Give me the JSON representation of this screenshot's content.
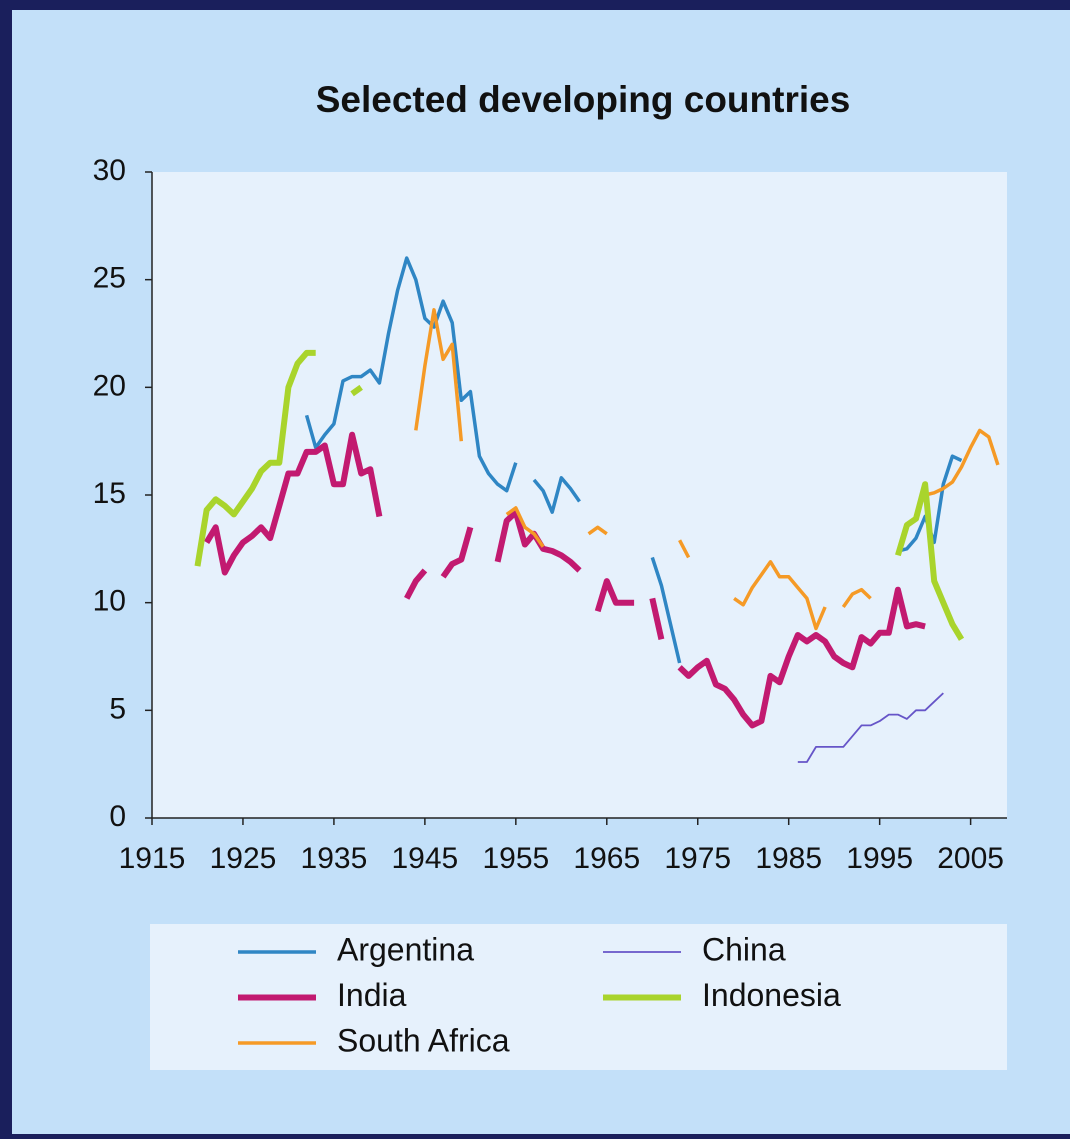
{
  "chart_data": {
    "type": "line",
    "title": "Selected developing countries",
    "x": [
      1920,
      1921,
      1922,
      1923,
      1924,
      1925,
      1926,
      1927,
      1928,
      1929,
      1930,
      1931,
      1932,
      1933,
      1934,
      1935,
      1936,
      1937,
      1938,
      1939,
      1940,
      1941,
      1942,
      1943,
      1944,
      1945,
      1946,
      1947,
      1948,
      1949,
      1950,
      1951,
      1952,
      1953,
      1954,
      1955,
      1956,
      1957,
      1958,
      1959,
      1960,
      1961,
      1962,
      1963,
      1964,
      1965,
      1966,
      1967,
      1968,
      1969,
      1970,
      1971,
      1972,
      1973,
      1974,
      1975,
      1976,
      1977,
      1978,
      1979,
      1980,
      1981,
      1982,
      1983,
      1984,
      1985,
      1986,
      1987,
      1988,
      1989,
      1990,
      1991,
      1992,
      1993,
      1994,
      1995,
      1996,
      1997,
      1998,
      1999,
      2000,
      2001,
      2002,
      2003,
      2004,
      2005,
      2006,
      2007,
      2008
    ],
    "series": [
      {
        "name": "Argentina",
        "color": "#2f86c4",
        "values": [
          null,
          null,
          null,
          null,
          null,
          null,
          null,
          null,
          null,
          null,
          null,
          null,
          18.7,
          17.2,
          17.8,
          18.3,
          20.3,
          20.5,
          20.5,
          20.8,
          20.2,
          22.5,
          24.5,
          26,
          25,
          23.2,
          22.8,
          24,
          23,
          19.4,
          19.8,
          16.8,
          16,
          15.5,
          15.2,
          16.5,
          null,
          15.7,
          15.2,
          14.2,
          15.8,
          15.3,
          14.7,
          null,
          null,
          null,
          null,
          null,
          null,
          null,
          12.1,
          10.8,
          9,
          7.2,
          null,
          null,
          null,
          null,
          null,
          null,
          null,
          null,
          null,
          null,
          null,
          null,
          null,
          null,
          null,
          null,
          null,
          null,
          null,
          null,
          null,
          null,
          null,
          12.4,
          12.5,
          13,
          14,
          12.8,
          15.5,
          16.8,
          16.6,
          null,
          null,
          null,
          null
        ]
      },
      {
        "name": "India",
        "color": "#c21a70",
        "values": [
          null,
          12.8,
          13.5,
          11.4,
          12.2,
          12.8,
          13.1,
          13.5,
          13,
          14.5,
          16,
          16,
          17,
          17,
          17.3,
          15.5,
          15.5,
          17.8,
          16,
          16.2,
          14,
          null,
          null,
          10.2,
          11,
          11.5,
          null,
          11.2,
          11.8,
          12,
          13.5,
          null,
          null,
          11.9,
          13.8,
          14.2,
          12.7,
          13.2,
          12.5,
          12.4,
          12.2,
          11.9,
          11.5,
          null,
          9.6,
          11,
          10,
          10,
          10,
          null,
          10.2,
          8.3,
          null,
          7,
          6.6,
          7,
          7.3,
          6.2,
          6,
          5.5,
          4.8,
          4.3,
          4.5,
          6.6,
          6.3,
          7.5,
          8.5,
          8.2,
          8.5,
          8.2,
          7.5,
          7.2,
          7,
          8.4,
          8.1,
          8.6,
          8.6,
          10.6,
          8.9,
          9,
          8.9,
          null,
          null,
          null,
          null,
          null,
          null,
          null,
          null
        ]
      },
      {
        "name": "South Africa",
        "color": "#f59a26",
        "values": [
          null,
          null,
          null,
          null,
          null,
          null,
          null,
          null,
          null,
          null,
          null,
          null,
          null,
          null,
          null,
          null,
          null,
          null,
          null,
          null,
          null,
          null,
          null,
          null,
          18,
          21,
          23.6,
          21.3,
          22,
          17.5,
          null,
          null,
          null,
          null,
          14.1,
          14.4,
          13.5,
          13.2,
          12.6,
          null,
          null,
          null,
          null,
          13.2,
          13.5,
          13.2,
          null,
          null,
          null,
          null,
          null,
          null,
          null,
          12.9,
          12.1,
          null,
          null,
          null,
          null,
          10.2,
          9.9,
          10.7,
          11.3,
          11.9,
          11.2,
          11.2,
          10.7,
          10.2,
          8.8,
          9.8,
          null,
          9.8,
          10.4,
          10.6,
          10.2,
          null,
          null,
          null,
          null,
          null,
          15,
          15.1,
          15.3,
          15.6,
          16.3,
          17.2,
          18,
          17.7,
          16.4
        ]
      },
      {
        "name": "China",
        "color": "#6655c8",
        "values": [
          null,
          null,
          null,
          null,
          null,
          null,
          null,
          null,
          null,
          null,
          null,
          null,
          null,
          null,
          null,
          null,
          null,
          null,
          null,
          null,
          null,
          null,
          null,
          null,
          null,
          null,
          null,
          null,
          null,
          null,
          null,
          null,
          null,
          null,
          null,
          null,
          null,
          null,
          null,
          null,
          null,
          null,
          null,
          null,
          null,
          null,
          null,
          null,
          null,
          null,
          null,
          null,
          null,
          null,
          null,
          null,
          null,
          null,
          null,
          null,
          null,
          null,
          null,
          null,
          null,
          null,
          2.6,
          2.6,
          3.3,
          3.3,
          3.3,
          3.3,
          3.8,
          4.3,
          4.3,
          4.5,
          4.8,
          4.8,
          4.6,
          5,
          5,
          5.4,
          5.8,
          null,
          null,
          null,
          null,
          null,
          null
        ]
      },
      {
        "name": "Indonesia",
        "color": "#a9d42c",
        "values": [
          11.7,
          14.3,
          14.8,
          14.5,
          14.1,
          14.7,
          15.3,
          16.1,
          16.5,
          16.5,
          20,
          21.1,
          21.6,
          21.6,
          null,
          null,
          null,
          19.7,
          20,
          null,
          null,
          null,
          null,
          null,
          null,
          null,
          null,
          null,
          null,
          null,
          null,
          null,
          null,
          null,
          null,
          null,
          null,
          null,
          null,
          null,
          null,
          null,
          null,
          null,
          null,
          null,
          null,
          null,
          null,
          null,
          null,
          null,
          null,
          null,
          null,
          null,
          null,
          null,
          null,
          null,
          null,
          null,
          null,
          null,
          null,
          null,
          null,
          null,
          null,
          null,
          null,
          null,
          null,
          null,
          null,
          null,
          null,
          12.2,
          13.6,
          13.9,
          15.5,
          11,
          10,
          9,
          8.3,
          null,
          null,
          null,
          null
        ]
      }
    ],
    "xlim": [
      1915,
      2009
    ],
    "xticks": [
      1915,
      1925,
      1935,
      1945,
      1955,
      1965,
      1975,
      1985,
      1995,
      2005
    ],
    "ylim": [
      0,
      30
    ],
    "yticks": [
      0,
      5,
      10,
      15,
      20,
      25,
      30
    ],
    "grid": false
  }
}
